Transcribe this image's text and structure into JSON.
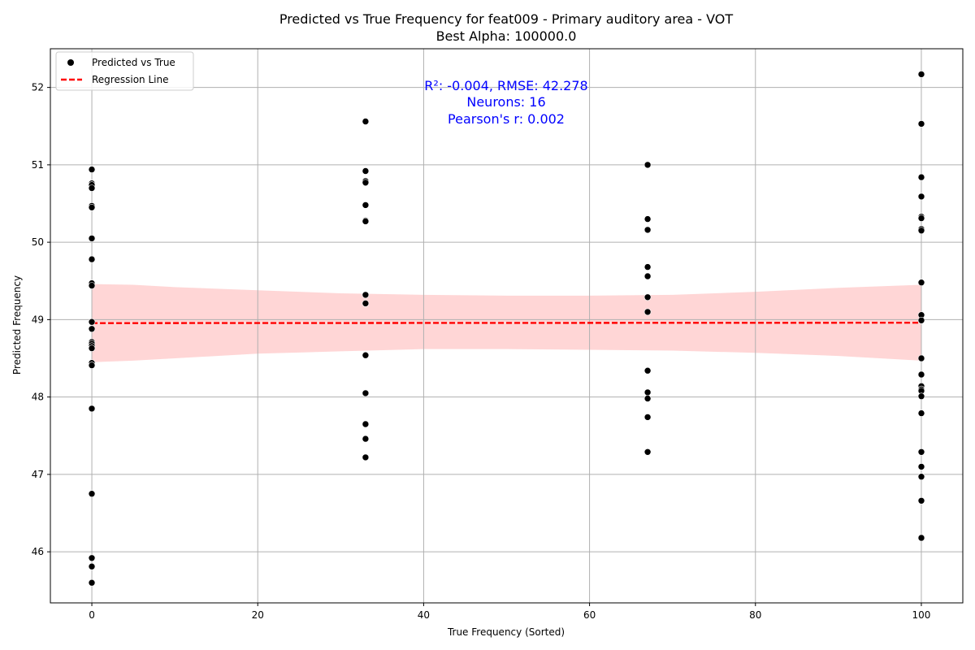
{
  "chart_data": {
    "type": "scatter",
    "title": "Predicted vs True Frequency for feat009 - Primary auditory area - VOT",
    "subtitle": "Best Alpha: 100000.0",
    "xlabel": "True Frequency (Sorted)",
    "ylabel": "Predicted Frequency",
    "xlim": [
      -5,
      105
    ],
    "ylim": [
      45.34,
      52.5
    ],
    "xticks": [
      0,
      20,
      40,
      60,
      80,
      100
    ],
    "yticks": [
      46,
      47,
      48,
      49,
      50,
      51,
      52
    ],
    "grid": true,
    "legend_position": "top-left",
    "legend": [
      {
        "label": "Predicted vs True",
        "marker": "dot",
        "color": "#000000"
      },
      {
        "label": "Regression Line",
        "marker": "dashed-line",
        "color": "#ff0000"
      }
    ],
    "annotations": [
      "R²: -0.004, RMSE: 42.278",
      "Neurons: 16",
      "Pearson's r: 0.002"
    ],
    "regression": {
      "x": [
        0,
        100
      ],
      "y": [
        48.955,
        48.96
      ],
      "color": "#ff0000"
    },
    "confidence_band": {
      "x": [
        0,
        5,
        10,
        20,
        30,
        40,
        50,
        60,
        70,
        80,
        90,
        95,
        100
      ],
      "upper": [
        49.46,
        49.45,
        49.42,
        49.38,
        49.34,
        49.32,
        49.31,
        49.31,
        49.32,
        49.36,
        49.41,
        49.43,
        49.45
      ],
      "lower": [
        48.45,
        48.47,
        48.5,
        48.56,
        48.59,
        48.62,
        48.62,
        48.61,
        48.6,
        48.57,
        48.53,
        48.5,
        48.47
      ],
      "color": "#ffcccc"
    },
    "series": [
      {
        "name": "Predicted vs True",
        "color": "#000000",
        "points": [
          [
            0,
            50.94
          ],
          [
            0,
            50.76
          ],
          [
            0,
            50.74
          ],
          [
            0,
            50.7
          ],
          [
            0,
            50.47
          ],
          [
            0,
            50.45
          ],
          [
            0,
            50.05
          ],
          [
            0,
            49.78
          ],
          [
            0,
            49.47
          ],
          [
            0,
            49.44
          ],
          [
            0,
            48.97
          ],
          [
            0,
            48.88
          ],
          [
            0,
            48.71
          ],
          [
            0,
            48.69
          ],
          [
            0,
            48.66
          ],
          [
            0,
            48.63
          ],
          [
            0,
            48.44
          ],
          [
            0,
            48.41
          ],
          [
            0,
            47.85
          ],
          [
            0,
            46.75
          ],
          [
            0,
            45.92
          ],
          [
            0,
            45.81
          ],
          [
            0,
            45.6
          ],
          [
            33,
            51.56
          ],
          [
            33,
            50.92
          ],
          [
            33,
            50.79
          ],
          [
            33,
            50.77
          ],
          [
            33,
            50.48
          ],
          [
            33,
            50.28
          ],
          [
            33,
            50.27
          ],
          [
            33,
            49.32
          ],
          [
            33,
            49.21
          ],
          [
            33,
            48.54
          ],
          [
            33,
            48.05
          ],
          [
            33,
            47.65
          ],
          [
            33,
            47.46
          ],
          [
            33,
            47.22
          ],
          [
            67,
            51.0
          ],
          [
            67,
            50.3
          ],
          [
            67,
            50.16
          ],
          [
            67,
            49.68
          ],
          [
            67,
            49.56
          ],
          [
            67,
            49.29
          ],
          [
            67,
            49.1
          ],
          [
            67,
            48.34
          ],
          [
            67,
            48.06
          ],
          [
            67,
            47.98
          ],
          [
            67,
            47.74
          ],
          [
            67,
            47.29
          ],
          [
            100,
            52.17
          ],
          [
            100,
            51.53
          ],
          [
            100,
            50.84
          ],
          [
            100,
            50.59
          ],
          [
            100,
            50.33
          ],
          [
            100,
            50.31
          ],
          [
            100,
            50.17
          ],
          [
            100,
            50.15
          ],
          [
            100,
            49.48
          ],
          [
            100,
            49.06
          ],
          [
            100,
            48.99
          ],
          [
            100,
            48.5
          ],
          [
            100,
            48.29
          ],
          [
            100,
            48.14
          ],
          [
            100,
            48.1
          ],
          [
            100,
            48.08
          ],
          [
            100,
            48.01
          ],
          [
            100,
            47.79
          ],
          [
            100,
            47.29
          ],
          [
            100,
            47.1
          ],
          [
            100,
            46.97
          ],
          [
            100,
            46.66
          ],
          [
            100,
            46.18
          ]
        ]
      }
    ]
  }
}
